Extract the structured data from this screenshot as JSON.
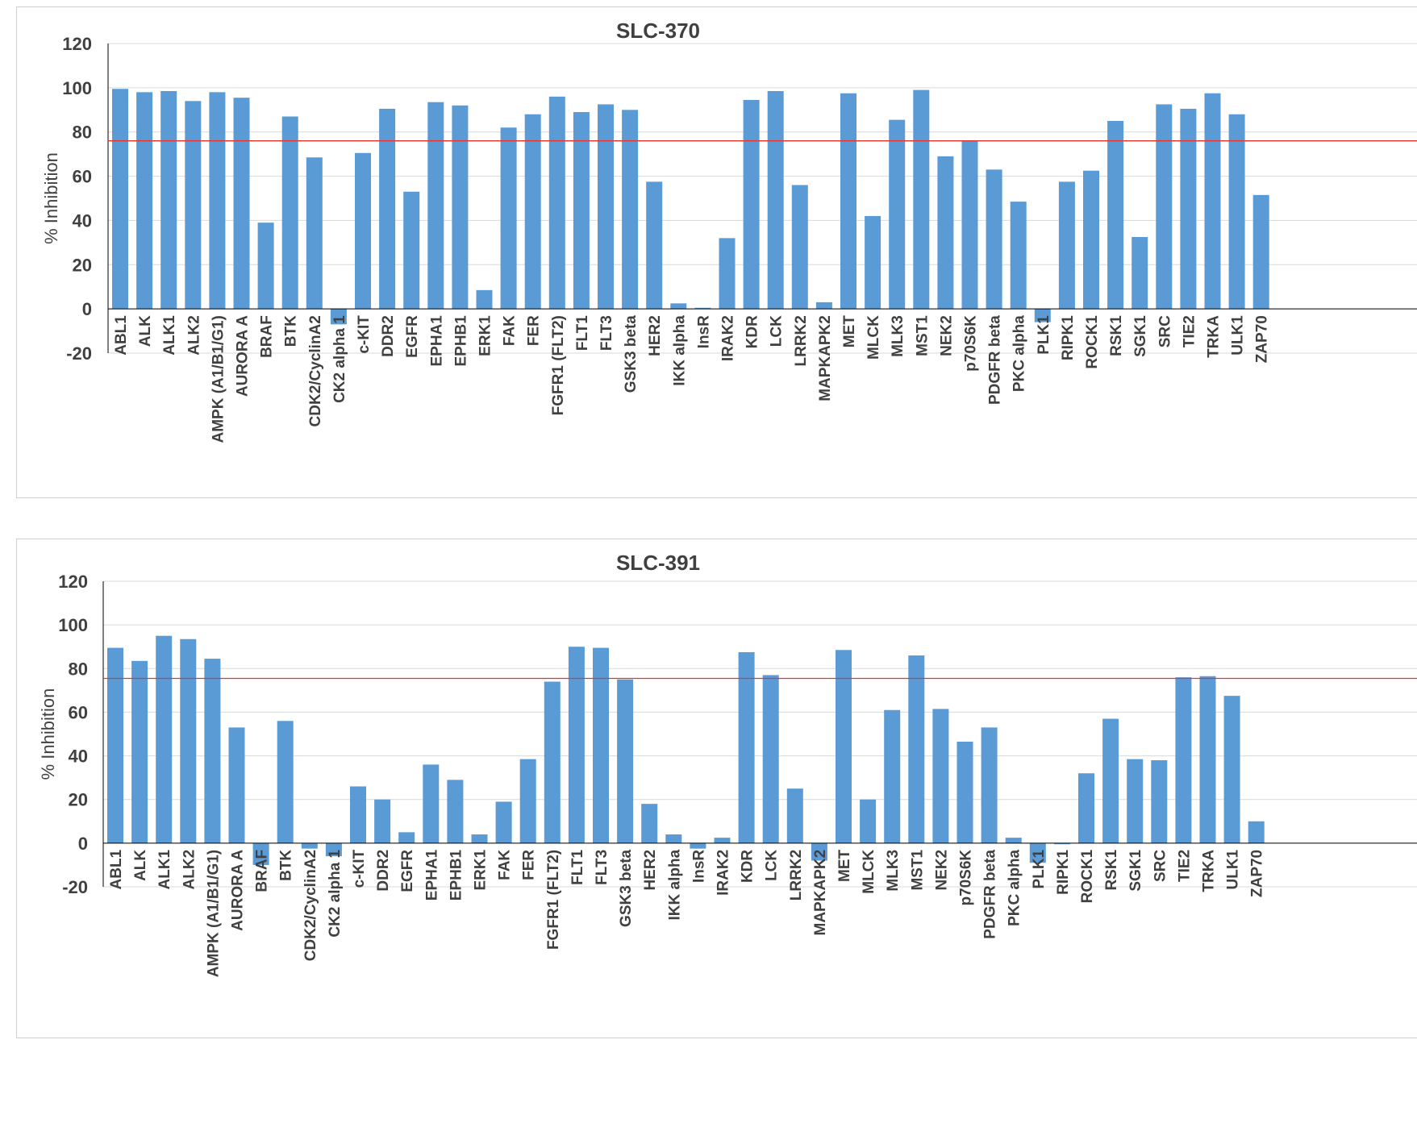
{
  "colors": {
    "bar": "#5b9bd5",
    "threshold": "#e8322c",
    "grid": "#d9d9d9",
    "axis": "#000000",
    "text": "#404040"
  },
  "chart_data": [
    {
      "type": "bar",
      "title": "SLC-370",
      "xlabel": "",
      "ylabel": "% Inhibition",
      "ylim": [
        -20,
        120
      ],
      "yticks": [
        -20,
        0,
        20,
        40,
        60,
        80,
        100,
        120
      ],
      "grid": true,
      "legend": "none",
      "threshold": 76,
      "categories": [
        "ABL1",
        "ALK",
        "ALK1",
        "ALK2",
        "AMPK (A1/B1/G1)",
        "AURORA A",
        "BRAF",
        "BTK",
        "CDK2/CyclinA2",
        "CK2 alpha 1",
        "c-KIT",
        "DDR2",
        "EGFR",
        "EPHA1",
        "EPHB1",
        "ERK1",
        "FAK",
        "FER",
        "FGFR1 (FLT2)",
        "FLT1",
        "FLT3",
        "GSK3 beta",
        "HER2",
        "IKK alpha",
        "InsR",
        "IRAK2",
        "KDR",
        "LCK",
        "LRRK2",
        "MAPKAPK2",
        "MET",
        "MLCK",
        "MLK3",
        "MST1",
        "NEK2",
        "p70S6K",
        "PDGFR beta",
        "PKC alpha",
        "PLK1",
        "RIPK1",
        "ROCK1",
        "RSK1",
        "SGK1",
        "SRC",
        "TIE2",
        "TRKA",
        "ULK1",
        "ZAP70"
      ],
      "values": [
        99.5,
        98,
        98.5,
        94,
        98,
        95.5,
        39,
        87,
        68.5,
        -7,
        70.5,
        90.5,
        53,
        93.5,
        92,
        8.5,
        82,
        88,
        96,
        89,
        92.5,
        90,
        57.5,
        2.5,
        0.5,
        32,
        94.5,
        98.5,
        56,
        3,
        97.5,
        42,
        85.5,
        99,
        69,
        76,
        63,
        48.5,
        -6,
        57.5,
        62.5,
        85,
        32.5,
        92.5,
        90.5,
        97.5,
        88,
        51.5
      ]
    },
    {
      "type": "bar",
      "title": "SLC-391",
      "xlabel": "",
      "ylabel": "% Inhibition",
      "ylim": [
        -20,
        120
      ],
      "yticks": [
        -20,
        0,
        20,
        40,
        60,
        80,
        100,
        120
      ],
      "grid": true,
      "legend": "none",
      "threshold": 75.5,
      "categories": [
        "ABL1",
        "ALK",
        "ALK1",
        "ALK2",
        "AMPK (A1/B1/G1)",
        "AURORA A",
        "BRAF",
        "BTK",
        "CDK2/CyclinA2",
        "CK2 alpha 1",
        "c-KIT",
        "DDR2",
        "EGFR",
        "EPHA1",
        "EPHB1",
        "ERK1",
        "FAK",
        "FER",
        "FGFR1 (FLT2)",
        "FLT1",
        "FLT3",
        "GSK3 beta",
        "HER2",
        "IKK alpha",
        "InsR",
        "IRAK2",
        "KDR",
        "LCK",
        "LRRK2",
        "MAPKAPK2",
        "MET",
        "MLCK",
        "MLK3",
        "MST1",
        "NEK2",
        "p70S6K",
        "PDGFR beta",
        "PKC alpha",
        "PLK1",
        "RIPK1",
        "ROCK1",
        "RSK1",
        "SGK1",
        "SRC",
        "TIE2",
        "TRKA",
        "ULK1",
        "ZAP70"
      ],
      "values": [
        89.5,
        83.5,
        95,
        93.5,
        84.5,
        53,
        -10,
        56,
        -2.5,
        -6,
        26,
        20,
        5,
        36,
        29,
        4,
        19,
        38.5,
        74,
        90,
        89.5,
        75,
        18,
        4,
        -2.5,
        2.5,
        87.5,
        77,
        25,
        -8,
        88.5,
        20,
        61,
        86,
        61.5,
        46.5,
        53,
        2.5,
        -9,
        -0.5,
        32,
        57,
        38.5,
        38,
        76,
        76.5,
        67.5,
        10
      ]
    }
  ]
}
